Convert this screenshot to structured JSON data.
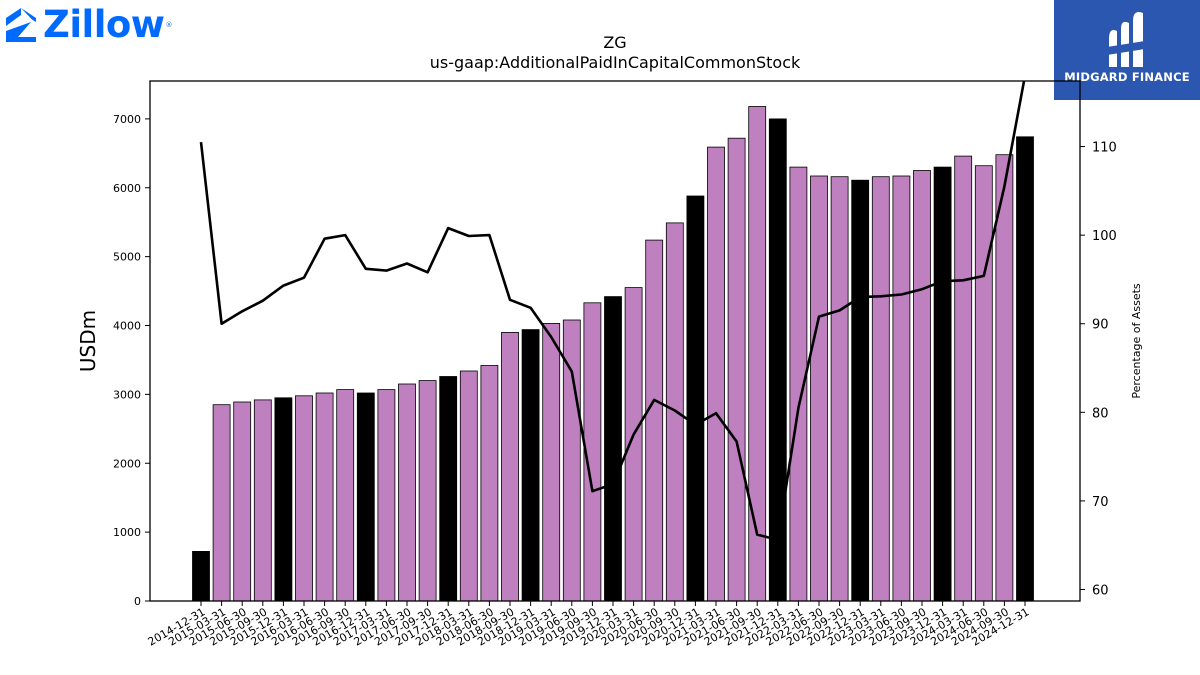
{
  "logos": {
    "left": {
      "text": "Zillow",
      "mark": "®",
      "color": "#006AFF",
      "icon": "zillow-house-icon"
    },
    "right": {
      "text": "MIDGARD FINANCE",
      "background": "#2b57b0",
      "icon": "midgard-m-icon"
    }
  },
  "chart_data": {
    "type": "bar",
    "title": "ZG",
    "subtitle": "us-gaap:AdditionalPaidInCapitalCommonStock",
    "xlabel": "",
    "ylabel": "USDm",
    "y2label": "Percentage of Assets",
    "ylim": [
      0,
      7550
    ],
    "y2lim": [
      58.7,
      117.4
    ],
    "yticks": [
      0,
      1000,
      2000,
      3000,
      4000,
      5000,
      6000,
      7000
    ],
    "y2ticks": [
      60,
      70,
      80,
      90,
      100,
      110
    ],
    "grid": false,
    "colors": {
      "quarter_bar": "#bf80bf",
      "year_end_bar": "#000000",
      "line": "#000000"
    },
    "categories": [
      "2014-12-31",
      "2015-03-31",
      "2015-06-30",
      "2015-09-30",
      "2015-12-31",
      "2016-03-31",
      "2016-06-30",
      "2016-09-30",
      "2016-12-31",
      "2017-03-31",
      "2017-06-30",
      "2017-09-30",
      "2017-12-31",
      "2018-03-31",
      "2018-06-30",
      "2018-09-30",
      "2018-12-31",
      "2019-03-31",
      "2019-06-30",
      "2019-09-30",
      "2019-12-31",
      "2020-03-31",
      "2020-06-30",
      "2020-09-30",
      "2020-12-31",
      "2021-03-31",
      "2021-06-30",
      "2021-09-30",
      "2021-12-31",
      "2022-03-31",
      "2022-06-30",
      "2022-09-30",
      "2022-12-31",
      "2023-03-31",
      "2023-06-30",
      "2023-09-30",
      "2023-12-31",
      "2024-03-31",
      "2024-06-30",
      "2024-09-30",
      "2024-12-31"
    ],
    "series": [
      {
        "kind": "bar",
        "axis": "left",
        "values": [
          720,
          2850,
          2890,
          2920,
          2950,
          2980,
          3020,
          3070,
          3020,
          3070,
          3150,
          3200,
          3260,
          3340,
          3420,
          3900,
          3940,
          4030,
          4080,
          4330,
          4420,
          4550,
          5240,
          5490,
          5880,
          6590,
          6720,
          7180,
          7000,
          6300,
          6170,
          6160,
          6110,
          6160,
          6170,
          6250,
          6300,
          6460,
          6320,
          6480,
          6740
        ]
      },
      {
        "kind": "line",
        "axis": "right",
        "values": [
          110.5,
          90.0,
          91.4,
          92.6,
          94.3,
          95.2,
          99.6,
          100.0,
          96.2,
          96.0,
          96.8,
          95.8,
          100.8,
          99.9,
          100.0,
          92.7,
          91.8,
          88.5,
          84.6,
          71.1,
          71.9,
          77.5,
          81.4,
          80.2,
          78.6,
          79.9,
          76.7,
          66.2,
          65.6,
          80.5,
          90.8,
          91.5,
          93.0,
          93.1,
          93.3,
          93.9,
          94.8,
          94.9,
          95.4,
          105.5,
          118.0
        ]
      }
    ]
  }
}
